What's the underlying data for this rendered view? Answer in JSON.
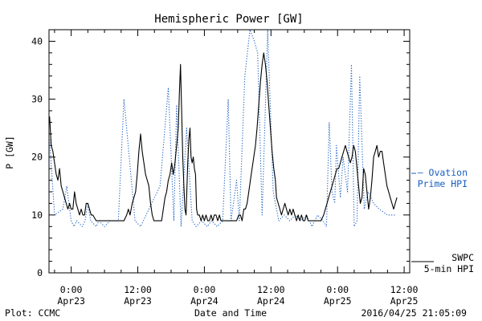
{
  "chart_data": {
    "type": "line",
    "title": "Hemispheric Power [GW]",
    "xlabel": "Date and Time",
    "ylabel": "P [GW]",
    "ylim": [
      0,
      42
    ],
    "xlim": [
      -4,
      61
    ],
    "x_units": "hours since Apr23 0:00",
    "yticks": [
      0,
      10,
      20,
      30,
      40
    ],
    "xticks": [
      {
        "x": 0,
        "top": "0:00",
        "bottom": "Apr23"
      },
      {
        "x": 12,
        "top": "12:00",
        "bottom": "Apr23"
      },
      {
        "x": 24,
        "top": "0:00",
        "bottom": "Apr24"
      },
      {
        "x": 36,
        "top": "12:00",
        "bottom": "Apr24"
      },
      {
        "x": 48,
        "top": "0:00",
        "bottom": "Apr25"
      },
      {
        "x": 60,
        "top": "12:00",
        "bottom": "Apr25"
      }
    ],
    "grid": false,
    "series": [
      {
        "name": "SWPC 5-min HPI",
        "color": "#000000",
        "style": "solid",
        "points": [
          [
            -3.9,
            27
          ],
          [
            -3.6,
            22
          ],
          [
            -3.3,
            21
          ],
          [
            -3.0,
            19
          ],
          [
            -2.7,
            17
          ],
          [
            -2.4,
            16
          ],
          [
            -2.1,
            18
          ],
          [
            -1.8,
            15
          ],
          [
            -1.5,
            14
          ],
          [
            -1.2,
            13
          ],
          [
            -0.9,
            12
          ],
          [
            -0.6,
            11
          ],
          [
            -0.3,
            12
          ],
          [
            0.0,
            11
          ],
          [
            0.3,
            11
          ],
          [
            0.6,
            14
          ],
          [
            0.9,
            12
          ],
          [
            1.2,
            11
          ],
          [
            1.5,
            10
          ],
          [
            1.8,
            11
          ],
          [
            2.1,
            10
          ],
          [
            2.4,
            10
          ],
          [
            2.7,
            12
          ],
          [
            3.0,
            12
          ],
          [
            3.3,
            11
          ],
          [
            3.6,
            10
          ],
          [
            3.9,
            10
          ],
          [
            4.5,
            9
          ],
          [
            5.5,
            9
          ],
          [
            7.0,
            9
          ],
          [
            8.0,
            9
          ],
          [
            9.0,
            9
          ],
          [
            9.5,
            9
          ],
          [
            10.0,
            10
          ],
          [
            10.3,
            11
          ],
          [
            10.6,
            10
          ],
          [
            11.0,
            12
          ],
          [
            11.3,
            13
          ],
          [
            11.6,
            14
          ],
          [
            11.9,
            17
          ],
          [
            12.2,
            21
          ],
          [
            12.5,
            24
          ],
          [
            12.8,
            21
          ],
          [
            13.1,
            19
          ],
          [
            13.4,
            17
          ],
          [
            13.7,
            16
          ],
          [
            14.0,
            15
          ],
          [
            14.3,
            12
          ],
          [
            14.6,
            10
          ],
          [
            14.9,
            9
          ],
          [
            15.5,
            9
          ],
          [
            16.3,
            9
          ],
          [
            16.6,
            11
          ],
          [
            16.9,
            13
          ],
          [
            17.2,
            14
          ],
          [
            17.5,
            16
          ],
          [
            17.8,
            17
          ],
          [
            18.1,
            19
          ],
          [
            18.4,
            17
          ],
          [
            18.7,
            19
          ],
          [
            19.0,
            22
          ],
          [
            19.3,
            25
          ],
          [
            19.5,
            31
          ],
          [
            19.7,
            36
          ],
          [
            19.9,
            28
          ],
          [
            20.1,
            20
          ],
          [
            20.3,
            15
          ],
          [
            20.5,
            11
          ],
          [
            20.7,
            10
          ],
          [
            21.0,
            19
          ],
          [
            21.2,
            23
          ],
          [
            21.4,
            25
          ],
          [
            21.6,
            20
          ],
          [
            21.8,
            19
          ],
          [
            22.0,
            20
          ],
          [
            22.2,
            18
          ],
          [
            22.4,
            17
          ],
          [
            22.6,
            11
          ],
          [
            22.8,
            10
          ],
          [
            23.1,
            10
          ],
          [
            23.4,
            9
          ],
          [
            23.7,
            10
          ],
          [
            24.0,
            9
          ],
          [
            24.3,
            10
          ],
          [
            24.6,
            9
          ],
          [
            24.9,
            9
          ],
          [
            25.2,
            10
          ],
          [
            25.5,
            9
          ],
          [
            25.8,
            10
          ],
          [
            26.1,
            10
          ],
          [
            26.4,
            9
          ],
          [
            26.7,
            10
          ],
          [
            27.0,
            9
          ],
          [
            27.4,
            9
          ],
          [
            27.8,
            9
          ],
          [
            28.2,
            9
          ],
          [
            28.6,
            9
          ],
          [
            29.0,
            9
          ],
          [
            29.4,
            9
          ],
          [
            29.8,
            9
          ],
          [
            30.2,
            10
          ],
          [
            30.5,
            10
          ],
          [
            30.8,
            9
          ],
          [
            31.1,
            11
          ],
          [
            31.4,
            11
          ],
          [
            31.7,
            12
          ],
          [
            32.0,
            14
          ],
          [
            32.3,
            16
          ],
          [
            32.6,
            18
          ],
          [
            32.9,
            20
          ],
          [
            33.2,
            22
          ],
          [
            33.5,
            25
          ],
          [
            33.8,
            29
          ],
          [
            34.1,
            33
          ],
          [
            34.4,
            36
          ],
          [
            34.7,
            38
          ],
          [
            35.0,
            36
          ],
          [
            35.3,
            33
          ],
          [
            35.6,
            29
          ],
          [
            35.9,
            25
          ],
          [
            36.2,
            21
          ],
          [
            36.5,
            18
          ],
          [
            36.8,
            16
          ],
          [
            37.0,
            13
          ],
          [
            37.3,
            12
          ],
          [
            37.6,
            11
          ],
          [
            37.9,
            10
          ],
          [
            38.2,
            11
          ],
          [
            38.5,
            12
          ],
          [
            38.8,
            11
          ],
          [
            39.1,
            10
          ],
          [
            39.4,
            11
          ],
          [
            39.7,
            10
          ],
          [
            40.0,
            11
          ],
          [
            40.3,
            10
          ],
          [
            40.6,
            9
          ],
          [
            40.9,
            10
          ],
          [
            41.2,
            9
          ],
          [
            41.5,
            10
          ],
          [
            41.8,
            9
          ],
          [
            42.1,
            9
          ],
          [
            42.4,
            10
          ],
          [
            42.7,
            9
          ],
          [
            43.0,
            9
          ],
          [
            43.5,
            9
          ],
          [
            44.0,
            9
          ],
          [
            44.5,
            9
          ],
          [
            45.0,
            9
          ],
          [
            45.5,
            10
          ],
          [
            45.8,
            11
          ],
          [
            46.1,
            12
          ],
          [
            46.4,
            13
          ],
          [
            46.7,
            14
          ],
          [
            47.0,
            15
          ],
          [
            47.3,
            16
          ],
          [
            47.6,
            17
          ],
          [
            47.9,
            18
          ],
          [
            48.2,
            18
          ],
          [
            48.5,
            19
          ],
          [
            48.8,
            20
          ],
          [
            49.1,
            21
          ],
          [
            49.4,
            22
          ],
          [
            49.7,
            21
          ],
          [
            50.0,
            20
          ],
          [
            50.3,
            19
          ],
          [
            50.6,
            20
          ],
          [
            50.9,
            22
          ],
          [
            51.2,
            21
          ],
          [
            51.5,
            18
          ],
          [
            51.8,
            15
          ],
          [
            52.1,
            12
          ],
          [
            52.4,
            13
          ],
          [
            52.7,
            18
          ],
          [
            53.0,
            17
          ],
          [
            53.3,
            14
          ],
          [
            53.6,
            11
          ],
          [
            53.9,
            13
          ],
          [
            54.2,
            16
          ],
          [
            54.5,
            20
          ],
          [
            54.8,
            21
          ],
          [
            55.1,
            22
          ],
          [
            55.4,
            20
          ],
          [
            55.7,
            21
          ],
          [
            56.0,
            21
          ],
          [
            56.3,
            19
          ],
          [
            56.6,
            17
          ],
          [
            56.9,
            15
          ],
          [
            57.2,
            14
          ],
          [
            57.5,
            13
          ],
          [
            57.8,
            12
          ],
          [
            58.1,
            11
          ],
          [
            58.4,
            12
          ],
          [
            58.7,
            13
          ]
        ]
      },
      {
        "name": "Ovation Prime HPI",
        "color": "#1a5fc0",
        "style": "dotted",
        "points": [
          [
            -3.9,
            23
          ],
          [
            -3.0,
            10
          ],
          [
            -1.5,
            11
          ],
          [
            -0.8,
            15
          ],
          [
            0.0,
            9
          ],
          [
            0.5,
            8
          ],
          [
            1.0,
            9
          ],
          [
            2.0,
            8
          ],
          [
            2.5,
            9
          ],
          [
            3.0,
            12
          ],
          [
            3.5,
            9
          ],
          [
            4.5,
            8
          ],
          [
            5.0,
            9
          ],
          [
            6.0,
            8
          ],
          [
            7.0,
            9
          ],
          [
            8.5,
            9
          ],
          [
            9.5,
            30
          ],
          [
            11.5,
            9
          ],
          [
            12.5,
            8
          ],
          [
            14.5,
            12
          ],
          [
            16.0,
            15
          ],
          [
            17.5,
            32
          ],
          [
            18.5,
            9
          ],
          [
            19.0,
            29
          ],
          [
            19.8,
            8
          ],
          [
            20.8,
            25
          ],
          [
            21.8,
            9
          ],
          [
            22.5,
            8
          ],
          [
            23.5,
            9
          ],
          [
            24.5,
            8
          ],
          [
            25.3,
            9
          ],
          [
            26.3,
            8
          ],
          [
            27.3,
            9
          ],
          [
            28.3,
            30
          ],
          [
            28.8,
            9
          ],
          [
            29.8,
            16
          ],
          [
            30.3,
            9
          ],
          [
            31.3,
            34
          ],
          [
            32.2,
            42
          ],
          [
            33.0,
            40
          ],
          [
            33.6,
            38
          ],
          [
            34.4,
            10
          ],
          [
            35.4,
            42
          ],
          [
            36.4,
            14
          ],
          [
            37.4,
            9
          ],
          [
            38.4,
            10
          ],
          [
            39.4,
            9
          ],
          [
            40.4,
            10
          ],
          [
            41.4,
            9
          ],
          [
            42.4,
            10
          ],
          [
            43.4,
            8
          ],
          [
            44.4,
            10
          ],
          [
            45.4,
            9
          ],
          [
            46.0,
            8
          ],
          [
            46.5,
            26
          ],
          [
            47.0,
            14
          ],
          [
            47.5,
            12
          ],
          [
            47.8,
            22
          ],
          [
            48.5,
            13
          ],
          [
            49.0,
            20
          ],
          [
            49.8,
            14
          ],
          [
            50.5,
            36
          ],
          [
            51.0,
            8
          ],
          [
            51.5,
            9
          ],
          [
            52.0,
            34
          ],
          [
            52.8,
            11
          ],
          [
            53.5,
            14
          ],
          [
            54.5,
            12
          ],
          [
            55.5,
            11
          ],
          [
            57.0,
            10
          ],
          [
            58.5,
            10
          ]
        ]
      }
    ]
  },
  "legend": {
    "ovation_line1": "– Ovation",
    "ovation_line2": "Prime HPI",
    "swpc_line1": "SWPC",
    "swpc_line2": "5-min HPI"
  },
  "footer": {
    "left": "Plot: CCMC",
    "center": "Date and Time",
    "right": "2016/04/25 21:05:09"
  }
}
